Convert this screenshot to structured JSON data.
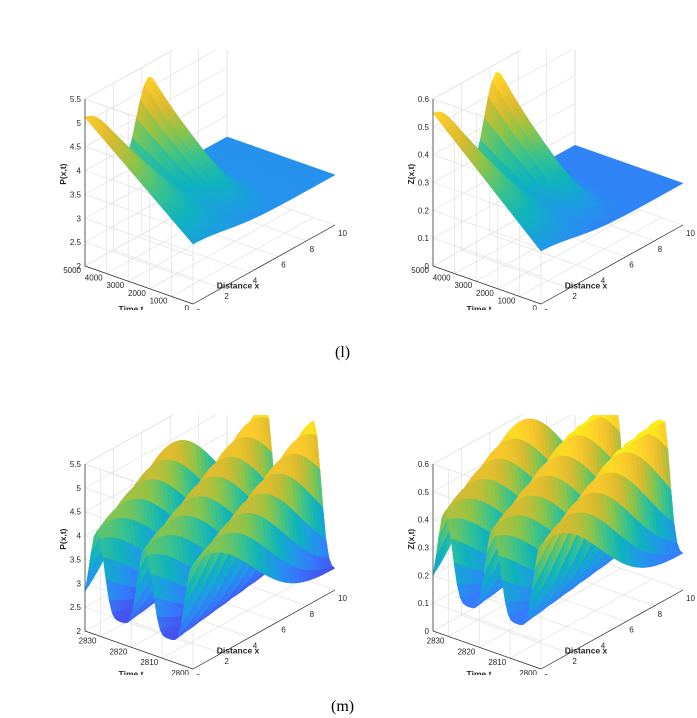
{
  "captions": [
    "(l)",
    "(m)"
  ],
  "chart_data": [
    {
      "type": "surface",
      "xlabel": "Distance x",
      "ylabel": "Time t",
      "zlabel": "P(x,t)",
      "xlim": [
        0,
        10
      ],
      "ylim": [
        0,
        5000
      ],
      "zlim": [
        2,
        5.5
      ],
      "xticks": [
        "0",
        "2",
        "4",
        "6",
        "8",
        "10"
      ],
      "yticks": [
        "0",
        "1000",
        "2000",
        "3000",
        "4000",
        "5000"
      ],
      "zticks": [
        "2",
        "2.5",
        "3",
        "3.5",
        "4",
        "4.5",
        "5",
        "5.5"
      ],
      "colormap": "parula",
      "grid": true
    },
    {
      "type": "surface",
      "xlabel": "Distance x",
      "ylabel": "Time t",
      "zlabel": "Z(x,t)",
      "xlim": [
        0,
        10
      ],
      "ylim": [
        0,
        5000
      ],
      "zlim": [
        0,
        0.6
      ],
      "xticks": [
        "0",
        "2",
        "4",
        "6",
        "8",
        "10"
      ],
      "yticks": [
        "0",
        "1000",
        "2000",
        "3000",
        "4000",
        "5000"
      ],
      "zticks": [
        "0",
        "0.1",
        "0.2",
        "0.3",
        "0.4",
        "0.5",
        "0.6"
      ],
      "colormap": "parula",
      "grid": true
    },
    {
      "type": "surface",
      "xlabel": "Distance x",
      "ylabel": "Time t",
      "zlabel": "P(x,t)",
      "xlim": [
        0,
        10
      ],
      "ylim": [
        2800,
        2835
      ],
      "zlim": [
        2,
        5.5
      ],
      "xticks": [
        "0",
        "2",
        "4",
        "6",
        "8",
        "10"
      ],
      "yticks": [
        "2800",
        "2810",
        "2820",
        "2830"
      ],
      "zticks": [
        "2",
        "2.5",
        "3",
        "3.5",
        "4",
        "4.5",
        "5",
        "5.5"
      ],
      "colormap": "parula",
      "grid": true
    },
    {
      "type": "surface",
      "xlabel": "Distance x",
      "ylabel": "Time t",
      "zlabel": "Z(x,t)",
      "xlim": [
        0,
        10
      ],
      "ylim": [
        2800,
        2835
      ],
      "zlim": [
        0,
        0.6
      ],
      "xticks": [
        "0",
        "2",
        "4",
        "6",
        "8",
        "10"
      ],
      "yticks": [
        "2800",
        "2810",
        "2820",
        "2830"
      ],
      "zticks": [
        "0",
        "0.1",
        "0.2",
        "0.3",
        "0.4",
        "0.5",
        "0.6"
      ],
      "colormap": "parula",
      "grid": true
    }
  ]
}
